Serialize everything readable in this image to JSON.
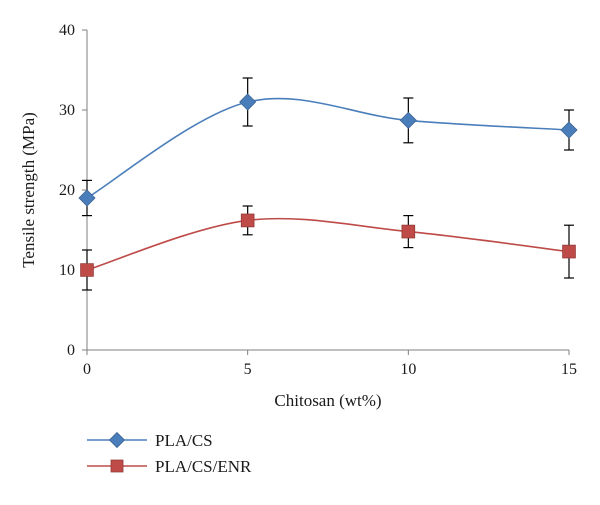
{
  "chart_data": {
    "type": "line",
    "title": "",
    "xlabel": "Chitosan (wt%)",
    "ylabel": "Tensile strength (MPa)",
    "x": [
      0,
      5,
      10,
      15
    ],
    "x_ticks": [
      "0",
      "5",
      "10",
      "15"
    ],
    "xlim": [
      0,
      15
    ],
    "ylim": [
      0,
      40
    ],
    "y_ticks": [
      "0",
      "10",
      "20",
      "30",
      "40"
    ],
    "grid": false,
    "smooth": true,
    "legend_position": "bottom-left",
    "series": [
      {
        "name": "PLA/CS",
        "values": [
          19.0,
          31.0,
          28.7,
          27.5
        ],
        "error": [
          2.2,
          3.0,
          2.8,
          2.5
        ],
        "color": "#4a7ebb",
        "marker": "diamond"
      },
      {
        "name": "PLA/CS/ENR",
        "values": [
          10.0,
          16.2,
          14.8,
          12.3
        ],
        "error": [
          2.5,
          1.8,
          2.0,
          3.3
        ],
        "color": "#be4b48",
        "marker": "square"
      }
    ]
  }
}
